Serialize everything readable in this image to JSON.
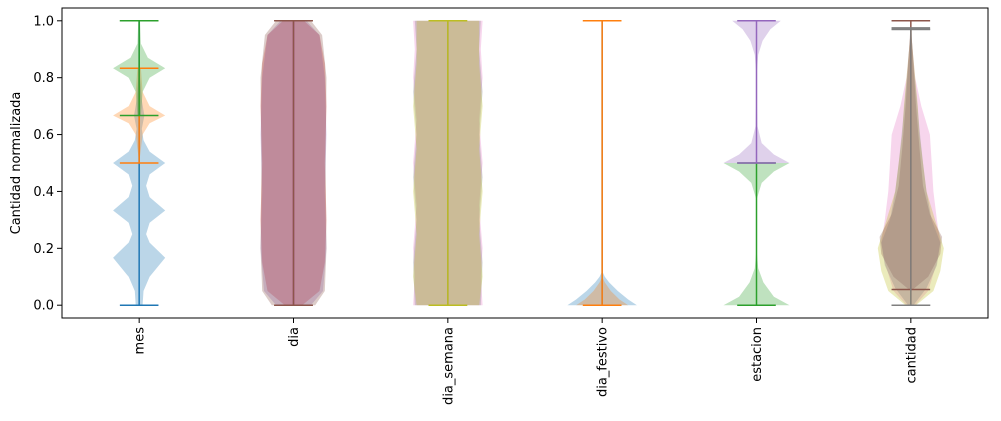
{
  "chart_data": {
    "type": "violin",
    "ylabel": "Cantidad normalizada",
    "ylim": [
      -0.045,
      1.045
    ],
    "yticks": [
      "0.0",
      "0.2",
      "0.4",
      "0.6",
      "0.8",
      "1.0"
    ],
    "categories": [
      "mes",
      "dia",
      "dia_semana",
      "dia_festivo",
      "estacion",
      "cantidad"
    ],
    "grid": false,
    "violins": [
      {
        "category": "mes",
        "color": "#1f77b4",
        "range": [
          0.0,
          1.0
        ],
        "extrema_colors": {
          "min": "#1f77b4",
          "max": "#2ca02c"
        },
        "shape": [
          [
            0.0,
            0.04
          ],
          [
            0.05,
            0.05
          ],
          [
            0.1,
            0.12
          ],
          [
            0.167,
            0.3
          ],
          [
            0.22,
            0.12
          ],
          [
            0.25,
            0.08
          ],
          [
            0.29,
            0.12
          ],
          [
            0.333,
            0.3
          ],
          [
            0.38,
            0.12
          ],
          [
            0.42,
            0.08
          ],
          [
            0.46,
            0.12
          ],
          [
            0.5,
            0.3
          ],
          [
            0.54,
            0.12
          ],
          [
            0.58,
            0.05
          ],
          [
            0.62,
            0.03
          ],
          [
            0.667,
            0.06
          ],
          [
            0.72,
            0.03
          ],
          [
            0.8,
            0.01
          ],
          [
            1.0,
            0.0
          ]
        ]
      },
      {
        "category": "mes",
        "color": "#ff7f0e",
        "range": [
          0.5,
          0.833
        ],
        "extrema_colors": {
          "min": "#ff7f0e",
          "max": "#ff7f0e"
        },
        "shape": [
          [
            0.5,
            0.0
          ],
          [
            0.6,
            0.04
          ],
          [
            0.64,
            0.12
          ],
          [
            0.667,
            0.3
          ],
          [
            0.7,
            0.12
          ],
          [
            0.75,
            0.04
          ],
          [
            0.833,
            0.02
          ]
        ]
      },
      {
        "category": "mes",
        "color": "#2ca02c",
        "range": [
          0.667,
          1.0
        ],
        "extrema_colors": {
          "min": "#2ca02c",
          "max": "#2ca02c"
        },
        "shape": [
          [
            0.667,
            0.02
          ],
          [
            0.75,
            0.04
          ],
          [
            0.8,
            0.12
          ],
          [
            0.833,
            0.3
          ],
          [
            0.87,
            0.1
          ],
          [
            0.92,
            0.02
          ],
          [
            1.0,
            0.01
          ]
        ]
      },
      {
        "category": "dia",
        "color": "#d62728",
        "range": [
          0.0,
          1.0
        ],
        "extrema_colors": {
          "min": "#8c564b",
          "max": "#8c564b"
        },
        "shape": [
          [
            0.0,
            0.1
          ],
          [
            0.05,
            0.3
          ],
          [
            0.15,
            0.36
          ],
          [
            0.3,
            0.38
          ],
          [
            0.5,
            0.36
          ],
          [
            0.7,
            0.38
          ],
          [
            0.85,
            0.36
          ],
          [
            0.95,
            0.3
          ],
          [
            1.0,
            0.12
          ]
        ]
      },
      {
        "category": "dia",
        "color": "#9467bd",
        "range": [
          0.0,
          1.0
        ],
        "extrema_colors": {
          "min": "#8c564b",
          "max": "#8c564b"
        },
        "shape": [
          [
            0.0,
            0.2
          ],
          [
            0.05,
            0.34
          ],
          [
            0.2,
            0.38
          ],
          [
            0.4,
            0.36
          ],
          [
            0.6,
            0.38
          ],
          [
            0.8,
            0.36
          ],
          [
            0.95,
            0.3
          ],
          [
            1.0,
            0.15
          ]
        ]
      },
      {
        "category": "dia",
        "color": "#8c564b",
        "range": [
          0.0,
          1.0
        ],
        "extrema_colors": {
          "min": "#8c564b",
          "max": "#8c564b"
        },
        "shape": [
          [
            0.0,
            0.25
          ],
          [
            0.05,
            0.36
          ],
          [
            0.2,
            0.38
          ],
          [
            0.5,
            0.37
          ],
          [
            0.8,
            0.38
          ],
          [
            0.95,
            0.33
          ],
          [
            1.0,
            0.2
          ]
        ]
      },
      {
        "category": "dia_semana",
        "color": "#e377c2",
        "range": [
          0.0,
          1.0
        ],
        "extrema_colors": {
          "min": "#bcbd22",
          "max": "#bcbd22"
        },
        "shape": [
          [
            0.0,
            0.4
          ],
          [
            0.1,
            0.38
          ],
          [
            0.2,
            0.4
          ],
          [
            0.35,
            0.36
          ],
          [
            0.5,
            0.4
          ],
          [
            0.65,
            0.36
          ],
          [
            0.8,
            0.4
          ],
          [
            0.9,
            0.38
          ],
          [
            1.0,
            0.4
          ]
        ]
      },
      {
        "category": "dia_semana",
        "color": "#7f7f7f",
        "range": [
          0.0,
          1.0
        ],
        "extrema_colors": {
          "min": "#bcbd22",
          "max": "#bcbd22"
        },
        "shape": [
          [
            0.0,
            0.38
          ],
          [
            0.15,
            0.4
          ],
          [
            0.3,
            0.36
          ],
          [
            0.45,
            0.4
          ],
          [
            0.6,
            0.36
          ],
          [
            0.75,
            0.4
          ],
          [
            0.9,
            0.36
          ],
          [
            1.0,
            0.38
          ]
        ]
      },
      {
        "category": "dia_semana",
        "color": "#bcbd22",
        "range": [
          0.0,
          1.0
        ],
        "extrema_colors": {
          "min": "#bcbd22",
          "max": "#bcbd22"
        },
        "shape": [
          [
            0.0,
            0.36
          ],
          [
            0.1,
            0.4
          ],
          [
            0.25,
            0.36
          ],
          [
            0.4,
            0.4
          ],
          [
            0.55,
            0.36
          ],
          [
            0.7,
            0.4
          ],
          [
            0.85,
            0.36
          ],
          [
            1.0,
            0.36
          ]
        ]
      },
      {
        "category": "dia_festivo",
        "color": "#1f77b4",
        "range": [
          0.0,
          1.0
        ],
        "extrema_colors": {
          "min": "#ff7f0e",
          "max": "#ff7f0e"
        },
        "shape": [
          [
            0.0,
            0.4
          ],
          [
            0.02,
            0.3
          ],
          [
            0.05,
            0.18
          ],
          [
            0.08,
            0.08
          ],
          [
            0.1,
            0.03
          ],
          [
            0.12,
            0.0
          ]
        ]
      },
      {
        "category": "dia_festivo",
        "color": "#ff7f0e",
        "range": [
          0.0,
          1.0
        ],
        "extrema_colors": {
          "min": "#ff7f0e",
          "max": "#ff7f0e"
        },
        "shape": [
          [
            0.0,
            0.3
          ],
          [
            0.02,
            0.2
          ],
          [
            0.05,
            0.1
          ],
          [
            0.08,
            0.03
          ],
          [
            0.1,
            0.0
          ],
          [
            1.0,
            0.0
          ]
        ]
      },
      {
        "category": "estacion",
        "color": "#2ca02c",
        "range": [
          0.0,
          0.5
        ],
        "extrema_colors": {
          "min": "#2ca02c",
          "max": "#2ca02c"
        },
        "shape": [
          [
            0.0,
            0.38
          ],
          [
            0.03,
            0.2
          ],
          [
            0.08,
            0.08
          ],
          [
            0.13,
            0.02
          ],
          [
            0.2,
            0.0
          ],
          [
            0.37,
            0.0
          ],
          [
            0.43,
            0.06
          ],
          [
            0.47,
            0.2
          ],
          [
            0.5,
            0.38
          ]
        ]
      },
      {
        "category": "estacion",
        "color": "#9467bd",
        "range": [
          0.5,
          1.0
        ],
        "extrema_colors": {
          "min": "#9467bd",
          "max": "#9467bd"
        },
        "shape": [
          [
            0.5,
            0.38
          ],
          [
            0.53,
            0.2
          ],
          [
            0.57,
            0.06
          ],
          [
            0.63,
            0.01
          ],
          [
            0.8,
            0.0
          ],
          [
            0.88,
            0.02
          ],
          [
            0.93,
            0.07
          ],
          [
            0.97,
            0.16
          ],
          [
            1.0,
            0.28
          ]
        ]
      },
      {
        "category": "cantidad",
        "color": "#e377c2",
        "range": [
          0.0,
          0.97
        ],
        "extrema_colors": {
          "min": "#7f7f7f",
          "max": "#7f7f7f"
        },
        "shape": [
          [
            0.0,
            0.05
          ],
          [
            0.05,
            0.2
          ],
          [
            0.15,
            0.3
          ],
          [
            0.22,
            0.34
          ],
          [
            0.3,
            0.3
          ],
          [
            0.4,
            0.26
          ],
          [
            0.5,
            0.24
          ],
          [
            0.6,
            0.22
          ],
          [
            0.7,
            0.12
          ],
          [
            0.8,
            0.05
          ],
          [
            0.9,
            0.02
          ],
          [
            0.97,
            0.0
          ]
        ]
      },
      {
        "category": "cantidad",
        "color": "#bcbd22",
        "range": [
          0.0,
          0.97
        ],
        "extrema_colors": {
          "min": "#7f7f7f",
          "max": "#7f7f7f"
        },
        "shape": [
          [
            0.0,
            0.06
          ],
          [
            0.05,
            0.26
          ],
          [
            0.12,
            0.34
          ],
          [
            0.2,
            0.38
          ],
          [
            0.3,
            0.28
          ],
          [
            0.4,
            0.18
          ],
          [
            0.5,
            0.14
          ],
          [
            0.6,
            0.1
          ],
          [
            0.7,
            0.08
          ],
          [
            0.8,
            0.05
          ],
          [
            0.9,
            0.02
          ],
          [
            0.97,
            0.0
          ]
        ]
      },
      {
        "category": "cantidad",
        "color": "#8c564b",
        "range": [
          0.055,
          1.0
        ],
        "extrema_colors": {
          "min": "#8c564b",
          "max": "#8c564b"
        },
        "shape": [
          [
            0.055,
            0.02
          ],
          [
            0.1,
            0.2
          ],
          [
            0.18,
            0.34
          ],
          [
            0.24,
            0.36
          ],
          [
            0.32,
            0.22
          ],
          [
            0.42,
            0.14
          ],
          [
            0.55,
            0.1
          ],
          [
            0.7,
            0.06
          ],
          [
            0.85,
            0.03
          ],
          [
            1.0,
            0.0
          ]
        ]
      },
      {
        "category": "cantidad",
        "color": "#7f7f7f",
        "range": [
          0.0,
          0.975
        ],
        "extrema_colors": {
          "min": "#7f7f7f",
          "max": "#7f7f7f"
        },
        "shape": [
          [
            0.0,
            0.03
          ],
          [
            0.06,
            0.18
          ],
          [
            0.14,
            0.3
          ],
          [
            0.22,
            0.34
          ],
          [
            0.3,
            0.24
          ],
          [
            0.4,
            0.18
          ],
          [
            0.5,
            0.14
          ],
          [
            0.62,
            0.1
          ],
          [
            0.72,
            0.07
          ],
          [
            0.82,
            0.04
          ],
          [
            0.9,
            0.02
          ],
          [
            0.975,
            0.0
          ]
        ]
      }
    ]
  }
}
